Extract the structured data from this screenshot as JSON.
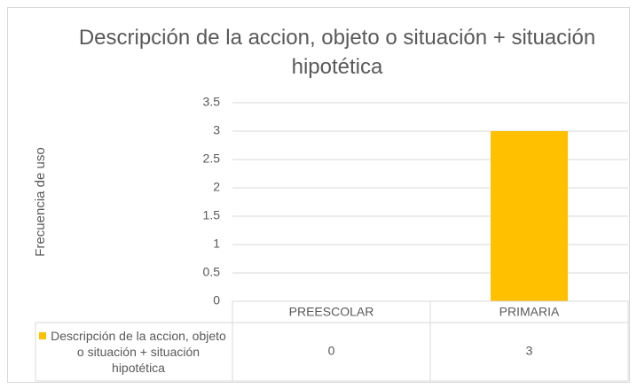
{
  "chart_data": {
    "type": "bar",
    "title": "Descripción de la accion, objeto o situación + situación hipotética",
    "y_label": "Frecuencia de uso",
    "categories": [
      "PREESCOLAR",
      "PRIMARIA"
    ],
    "series": [
      {
        "name": "Descripción de la accion, objeto o situación + situación hipotética",
        "color": "#ffc000",
        "values": [
          0,
          3
        ]
      }
    ],
    "ylim": [
      0,
      3.5
    ],
    "yticks": [
      0,
      0.5,
      1,
      1.5,
      2,
      2.5,
      3,
      3.5
    ],
    "grid": true,
    "data_table": true
  }
}
